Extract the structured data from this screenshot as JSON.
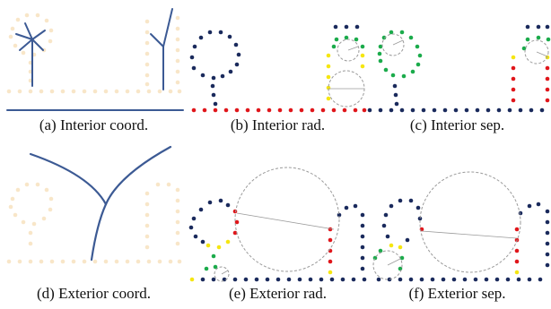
{
  "captions": {
    "a": "(a)  Interior coord.",
    "b": "(b)  Interior rad.",
    "c": "(c)  Interior sep.",
    "d": "(d)  Exterior coord.",
    "e": "(e)  Exterior rad.",
    "f": "(f)  Exterior sep."
  },
  "colors": {
    "navy": "#1a2a5c",
    "red": "#e0161b",
    "green": "#1bab4b",
    "yellow": "#f5e611",
    "faint": "#f8e6c8",
    "stroke": "#3c5a94",
    "circle": "#9a9a9a"
  }
}
